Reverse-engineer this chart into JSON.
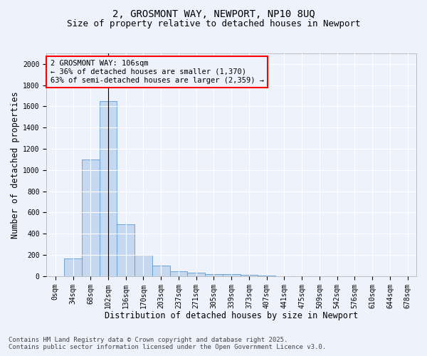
{
  "title_line1": "2, GROSMONT WAY, NEWPORT, NP10 8UQ",
  "title_line2": "Size of property relative to detached houses in Newport",
  "xlabel": "Distribution of detached houses by size in Newport",
  "ylabel": "Number of detached properties",
  "categories": [
    "0sqm",
    "34sqm",
    "68sqm",
    "102sqm",
    "136sqm",
    "170sqm",
    "203sqm",
    "237sqm",
    "271sqm",
    "305sqm",
    "339sqm",
    "373sqm",
    "407sqm",
    "441sqm",
    "475sqm",
    "509sqm",
    "542sqm",
    "576sqm",
    "610sqm",
    "644sqm",
    "678sqm"
  ],
  "values": [
    0,
    170,
    1100,
    1650,
    490,
    200,
    100,
    45,
    35,
    20,
    20,
    15,
    5,
    2,
    1,
    0,
    0,
    0,
    0,
    0,
    0
  ],
  "bar_color": "#c5d8f0",
  "bar_edge_color": "#5b9bd5",
  "background_color": "#eef2fa",
  "grid_color": "#ffffff",
  "annotation_text": "2 GROSMONT WAY: 106sqm\n← 36% of detached houses are smaller (1,370)\n63% of semi-detached houses are larger (2,359) →",
  "vline_x_idx": 3,
  "ylim": [
    0,
    2100
  ],
  "yticks": [
    0,
    200,
    400,
    600,
    800,
    1000,
    1200,
    1400,
    1600,
    1800,
    2000
  ],
  "footer_line1": "Contains HM Land Registry data © Crown copyright and database right 2025.",
  "footer_line2": "Contains public sector information licensed under the Open Government Licence v3.0.",
  "title_fontsize": 10,
  "subtitle_fontsize": 9,
  "axis_label_fontsize": 8.5,
  "tick_fontsize": 7,
  "annotation_fontsize": 7.5,
  "footer_fontsize": 6.5
}
